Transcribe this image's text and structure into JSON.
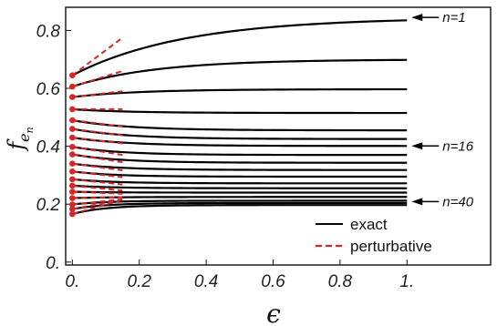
{
  "chart_data": {
    "type": "line",
    "x_label": "ϵ",
    "y_label": {
      "base": "f",
      "sub_base": "e",
      "sub_sub": "n"
    },
    "xlim": [
      -0.02,
      1.25
    ],
    "ylim": [
      -0.01,
      0.88
    ],
    "x_ticks": [
      {
        "v": 0,
        "label": "0."
      },
      {
        "v": 0.2,
        "label": "0.2"
      },
      {
        "v": 0.4,
        "label": "0.4"
      },
      {
        "v": 0.6,
        "label": "0.6"
      },
      {
        "v": 0.8,
        "label": "0.8"
      },
      {
        "v": 1.0,
        "label": "1."
      }
    ],
    "y_ticks": [
      {
        "v": 0,
        "label": "0."
      },
      {
        "v": 0.2,
        "label": "0.2"
      },
      {
        "v": 0.4,
        "label": "0.4"
      },
      {
        "v": 0.6,
        "label": "0.6"
      },
      {
        "v": 0.8,
        "label": "0.8"
      }
    ],
    "grid": false,
    "legend": {
      "placement": "bottom-right",
      "entries": [
        {
          "label": "exact",
          "color": "#000000",
          "dash": "solid"
        },
        {
          "label": "perturbative",
          "color": "#d62728",
          "dash": "dashed"
        }
      ]
    },
    "annotations": [
      {
        "text": "n=1",
        "x": 1.0,
        "y": 0.845
      },
      {
        "text": "n=16",
        "x": 1.0,
        "y": 0.401
      },
      {
        "text": "n=40",
        "x": 1.0,
        "y": 0.209
      }
    ],
    "exact_curves": [
      {
        "f0": 0.645,
        "f1": 0.845,
        "k": 3.0
      },
      {
        "f0": 0.606,
        "f1": 0.7,
        "k": 4.0
      },
      {
        "f0": 0.57,
        "f1": 0.597,
        "k": 5.0
      },
      {
        "f0": 0.528,
        "f1": 0.515,
        "k": 6.0
      },
      {
        "f0": 0.49,
        "f1": 0.455,
        "k": 6.0
      },
      {
        "f0": 0.46,
        "f1": 0.425,
        "k": 6.0
      },
      {
        "f0": 0.43,
        "f1": 0.401,
        "k": 6.0
      },
      {
        "f0": 0.398,
        "f1": 0.37,
        "k": 7.0
      },
      {
        "f0": 0.372,
        "f1": 0.343,
        "k": 7.0
      },
      {
        "f0": 0.34,
        "f1": 0.318,
        "k": 7.0
      },
      {
        "f0": 0.313,
        "f1": 0.295,
        "k": 8.0
      },
      {
        "f0": 0.286,
        "f1": 0.272,
        "k": 8.0
      },
      {
        "f0": 0.264,
        "f1": 0.255,
        "k": 8.0
      },
      {
        "f0": 0.243,
        "f1": 0.24,
        "k": 9.0
      },
      {
        "f0": 0.221,
        "f1": 0.225,
        "k": 9.0
      },
      {
        "f0": 0.199,
        "f1": 0.212,
        "k": 10.0
      },
      {
        "f0": 0.183,
        "f1": 0.204,
        "k": 10.0
      },
      {
        "f0": 0.166,
        "f1": 0.197,
        "k": 10.0
      }
    ],
    "perturbative_lines": [
      {
        "f0": 0.645,
        "f_end": 0.775
      },
      {
        "f0": 0.606,
        "f_end": 0.66
      },
      {
        "f0": 0.57,
        "f_end": 0.59
      },
      {
        "f0": 0.528,
        "f_end": 0.528
      },
      {
        "f0": 0.49,
        "f_end": 0.468
      },
      {
        "f0": 0.46,
        "f_end": 0.438
      },
      {
        "f0": 0.43,
        "f_end": 0.41
      },
      {
        "f0": 0.398,
        "f_end": 0.37
      },
      {
        "f0": 0.372,
        "f_end": 0.345
      },
      {
        "f0": 0.34,
        "f_end": 0.317
      },
      {
        "f0": 0.313,
        "f_end": 0.293
      },
      {
        "f0": 0.286,
        "f_end": 0.268
      },
      {
        "f0": 0.264,
        "f_end": 0.247
      },
      {
        "f0": 0.243,
        "f_end": 0.236
      },
      {
        "f0": 0.221,
        "f_end": 0.224
      },
      {
        "f0": 0.199,
        "f_end": 0.217
      },
      {
        "f0": 0.183,
        "f_end": 0.216
      },
      {
        "f0": 0.166,
        "f_end": 0.215
      }
    ],
    "perturbative_x_end": 0.15
  }
}
